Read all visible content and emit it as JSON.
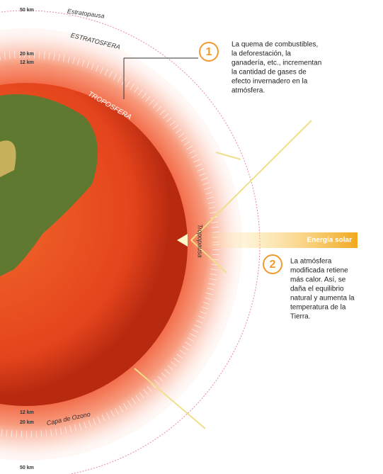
{
  "scale_labels": {
    "top_50": "50 km",
    "top_20": "20 km",
    "top_12": "12 km",
    "bottom_12": "12 km",
    "bottom_20": "20 km",
    "bottom_50": "50 km"
  },
  "layers": {
    "stratopause": "Estratopausa",
    "stratosphere": "ESTRATOSFERA",
    "troposphere": "TROPOSFERA",
    "tropopause": "Tropopausa",
    "ozone": "Capa de Ozono"
  },
  "step1": {
    "number": "1",
    "lines": [
      "La quema de combustibles,",
      "la deforestación, la",
      "ganadería, etc., incrementan",
      "la cantidad de gases de",
      "efecto invernadero en la",
      "atmósfera."
    ]
  },
  "solar_label": "Energía solar",
  "step2": {
    "number": "2",
    "lines": [
      "La atmósfera",
      "modificada retiene",
      "más calor. Así, se",
      "daña el equilibrio",
      "natural y aumenta la",
      "temperatura de la",
      "Tierra."
    ]
  }
}
